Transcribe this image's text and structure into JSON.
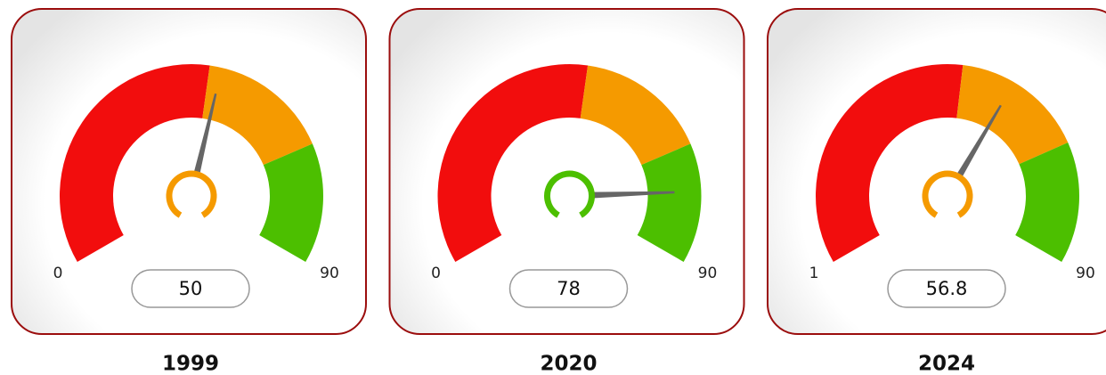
{
  "chart_data": [
    {
      "type": "gauge",
      "title": "1999",
      "min": 0,
      "max": 90,
      "value": 50,
      "bands": [
        {
          "from": 0,
          "to": 48,
          "color": "#f20d0d"
        },
        {
          "from": 48,
          "to": 70,
          "color": "#f59a00"
        },
        {
          "from": 70,
          "to": 90,
          "color": "#4cbf00"
        }
      ]
    },
    {
      "type": "gauge",
      "title": "2020",
      "min": 0,
      "max": 90,
      "value": 78,
      "bands": [
        {
          "from": 0,
          "to": 48,
          "color": "#f20d0d"
        },
        {
          "from": 48,
          "to": 70,
          "color": "#f59a00"
        },
        {
          "from": 70,
          "to": 90,
          "color": "#4cbf00"
        }
      ]
    },
    {
      "type": "gauge",
      "title": "2024",
      "min": 1,
      "max": 90,
      "value": 56.8,
      "bands": [
        {
          "from": 1,
          "to": 48,
          "color": "#f20d0d"
        },
        {
          "from": 48,
          "to": 70,
          "color": "#f59a00"
        },
        {
          "from": 70,
          "to": 90,
          "color": "#4cbf00"
        }
      ]
    }
  ]
}
